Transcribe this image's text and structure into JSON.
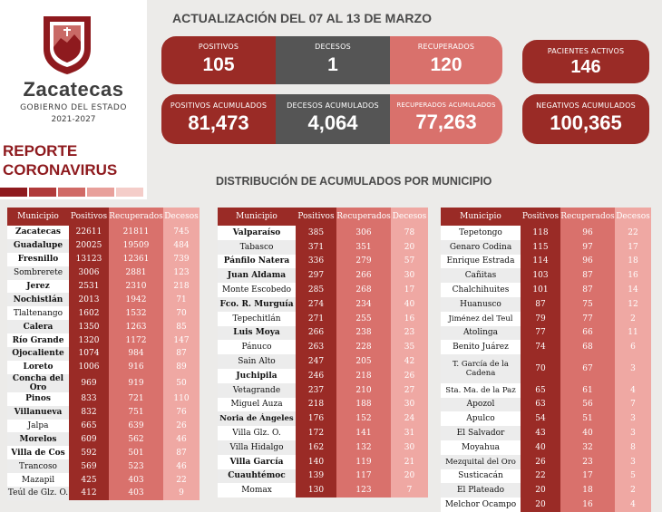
{
  "header": {
    "brand_name": "Zacatecas",
    "brand_sub": "GOBIERNO DEL ESTADO",
    "brand_years": "2021-2027",
    "report_line1": "REPORTE",
    "report_line2": "CORONAVIRUS",
    "update_title": "ACTUALIZACIÓN DEL 07 AL 13 DE MARZO",
    "distribution_title": "DISTRIBUCIÓN DE ACUMULADOS POR MUNICIPIO"
  },
  "colors": {
    "dark_red": "#9a2b26",
    "gray": "#555555",
    "light_red": "#d9716c",
    "pale_red": "#efa8a3",
    "text_dark": "#4a4a4a"
  },
  "stats": {
    "positivos": {
      "label": "POSITIVOS",
      "value": "105"
    },
    "decesos": {
      "label": "DECESOS",
      "value": "1"
    },
    "recuperados": {
      "label": "RECUPERADOS",
      "value": "120"
    },
    "activos": {
      "label": "PACIENTES ACTIVOS",
      "value": "146"
    },
    "positivos_acum": {
      "label": "POSITIVOS ACUMULADOS",
      "value": "81,473"
    },
    "decesos_acum": {
      "label": "DECESOS ACUMULADOS",
      "value": "4,064"
    },
    "recuperados_acum": {
      "label": "RECUPERADOS ACUMULADOS",
      "value": "77,263"
    },
    "negativos_acum": {
      "label": "NEGATIVOS ACUMULADOS",
      "value": "100,365"
    }
  },
  "table_headers": [
    "Municipio",
    "Positivos",
    "Recuperados",
    "Decesos"
  ],
  "tables": [
    [
      {
        "m": "Zacatecas",
        "p": "22611",
        "r": "21811",
        "d": "745",
        "b": true
      },
      {
        "m": "Guadalupe",
        "p": "20025",
        "r": "19509",
        "d": "484",
        "b": true
      },
      {
        "m": "Fresnillo",
        "p": "13123",
        "r": "12361",
        "d": "739",
        "b": true
      },
      {
        "m": "Sombrerete",
        "p": "3006",
        "r": "2881",
        "d": "123",
        "b": false
      },
      {
        "m": "Jerez",
        "p": "2531",
        "r": "2310",
        "d": "218",
        "b": true
      },
      {
        "m": "Nochistlán",
        "p": "2013",
        "r": "1942",
        "d": "71",
        "b": true
      },
      {
        "m": "Tlaltenango",
        "p": "1602",
        "r": "1532",
        "d": "70",
        "b": false
      },
      {
        "m": "Calera",
        "p": "1350",
        "r": "1263",
        "d": "85",
        "b": true
      },
      {
        "m": "Río Grande",
        "p": "1320",
        "r": "1172",
        "d": "147",
        "b": true
      },
      {
        "m": "Ojocaliente",
        "p": "1074",
        "r": "984",
        "d": "87",
        "b": true
      },
      {
        "m": "Loreto",
        "p": "1006",
        "r": "916",
        "d": "89",
        "b": true
      },
      {
        "m": "Concha del Oro",
        "p": "969",
        "r": "919",
        "d": "50",
        "b": true
      },
      {
        "m": "Pinos",
        "p": "833",
        "r": "721",
        "d": "110",
        "b": true
      },
      {
        "m": "Villanueva",
        "p": "832",
        "r": "751",
        "d": "76",
        "b": true
      },
      {
        "m": "Jalpa",
        "p": "665",
        "r": "639",
        "d": "26",
        "b": false
      },
      {
        "m": "Morelos",
        "p": "609",
        "r": "562",
        "d": "46",
        "b": true
      },
      {
        "m": "Villa de Cos",
        "p": "592",
        "r": "501",
        "d": "87",
        "b": true
      },
      {
        "m": "Trancoso",
        "p": "569",
        "r": "523",
        "d": "46",
        "b": false
      },
      {
        "m": "Mazapil",
        "p": "425",
        "r": "403",
        "d": "22",
        "b": false
      },
      {
        "m": "Teúl de Glz. O.",
        "p": "412",
        "r": "403",
        "d": "9",
        "b": false
      }
    ],
    [
      {
        "m": "Valparaíso",
        "p": "385",
        "r": "306",
        "d": "78",
        "b": true
      },
      {
        "m": "Tabasco",
        "p": "371",
        "r": "351",
        "d": "20",
        "b": false
      },
      {
        "m": "Pánfilo Natera",
        "p": "336",
        "r": "279",
        "d": "57",
        "b": true
      },
      {
        "m": "Juan Aldama",
        "p": "297",
        "r": "266",
        "d": "30",
        "b": true
      },
      {
        "m": "Monte Escobedo",
        "p": "285",
        "r": "268",
        "d": "17",
        "b": false
      },
      {
        "m": "Fco. R. Murguía",
        "p": "274",
        "r": "234",
        "d": "40",
        "b": true
      },
      {
        "m": "Tepechitlán",
        "p": "271",
        "r": "255",
        "d": "16",
        "b": false
      },
      {
        "m": "Luis Moya",
        "p": "266",
        "r": "238",
        "d": "23",
        "b": true
      },
      {
        "m": "Pánuco",
        "p": "263",
        "r": "228",
        "d": "35",
        "b": false
      },
      {
        "m": "Sain Alto",
        "p": "247",
        "r": "205",
        "d": "42",
        "b": false
      },
      {
        "m": "Juchipila",
        "p": "246",
        "r": "218",
        "d": "26",
        "b": true
      },
      {
        "m": "Vetagrande",
        "p": "237",
        "r": "210",
        "d": "27",
        "b": false
      },
      {
        "m": "Miguel Auza",
        "p": "218",
        "r": "188",
        "d": "30",
        "b": false
      },
      {
        "m": "Noria de Ángeles",
        "p": "176",
        "r": "152",
        "d": "24",
        "b": true
      },
      {
        "m": "Villa Glz. O.",
        "p": "172",
        "r": "141",
        "d": "31",
        "b": false
      },
      {
        "m": "Villa Hidalgo",
        "p": "162",
        "r": "132",
        "d": "30",
        "b": false
      },
      {
        "m": "Villa García",
        "p": "140",
        "r": "119",
        "d": "21",
        "b": true
      },
      {
        "m": "Cuauhtémoc",
        "p": "139",
        "r": "117",
        "d": "20",
        "b": true
      },
      {
        "m": "Momax",
        "p": "130",
        "r": "123",
        "d": "7",
        "b": false
      }
    ],
    [
      {
        "m": "Tepetongo",
        "p": "118",
        "r": "96",
        "d": "22",
        "b": false
      },
      {
        "m": "Genaro Codina",
        "p": "115",
        "r": "97",
        "d": "17",
        "b": false
      },
      {
        "m": "Enrique Estrada",
        "p": "114",
        "r": "96",
        "d": "18",
        "b": false
      },
      {
        "m": "Cañitas",
        "p": "103",
        "r": "87",
        "d": "16",
        "b": false
      },
      {
        "m": "Chalchihuites",
        "p": "101",
        "r": "87",
        "d": "14",
        "b": false
      },
      {
        "m": "Huanusco",
        "p": "87",
        "r": "75",
        "d": "12",
        "b": false
      },
      {
        "m": "Jiménez del Teul",
        "p": "79",
        "r": "77",
        "d": "2",
        "b": false
      },
      {
        "m": "Atolinga",
        "p": "77",
        "r": "66",
        "d": "11",
        "b": false
      },
      {
        "m": "Benito Juárez",
        "p": "74",
        "r": "68",
        "d": "6",
        "b": false
      },
      {
        "m": "T. García de la Cadena",
        "p": "70",
        "r": "67",
        "d": "3",
        "b": false
      },
      {
        "m": "Sta. Ma. de la Paz",
        "p": "65",
        "r": "61",
        "d": "4",
        "b": false
      },
      {
        "m": "Apozol",
        "p": "63",
        "r": "56",
        "d": "7",
        "b": false
      },
      {
        "m": "Apulco",
        "p": "54",
        "r": "51",
        "d": "3",
        "b": false
      },
      {
        "m": "El Salvador",
        "p": "43",
        "r": "40",
        "d": "3",
        "b": false
      },
      {
        "m": "Moyahua",
        "p": "40",
        "r": "32",
        "d": "8",
        "b": false
      },
      {
        "m": "Mezquital del Oro",
        "p": "26",
        "r": "23",
        "d": "3",
        "b": false
      },
      {
        "m": "Susticacán",
        "p": "22",
        "r": "17",
        "d": "5",
        "b": false
      },
      {
        "m": "El Plateado",
        "p": "20",
        "r": "18",
        "d": "2",
        "b": false
      },
      {
        "m": "Melchor Ocampo",
        "p": "20",
        "r": "16",
        "d": "4",
        "b": false
      }
    ]
  ]
}
